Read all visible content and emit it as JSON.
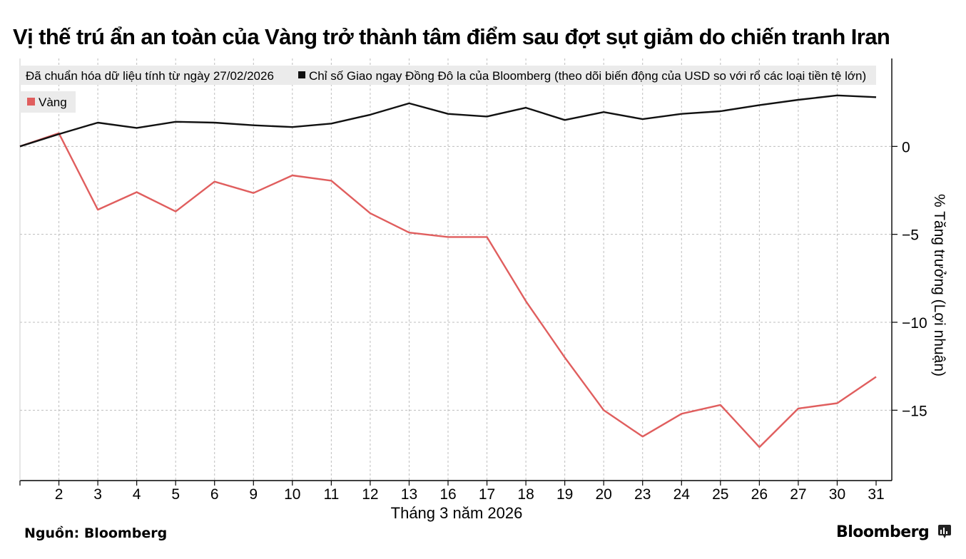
{
  "title": "Vị thế trú ẩn an toàn của Vàng trở thành tâm điểm sau đợt sụt giảm do chiến tranh Iran",
  "source": "Nguồn: Bloomberg",
  "brand": "Bloomberg",
  "brand_icon": "bloomberg-terminal-icon",
  "colors": {
    "usd": "#111111",
    "gold": "#e05e5e",
    "grid": "#bdbdbd",
    "legend_bg": "#ebebeb"
  },
  "chart_data": {
    "type": "line",
    "subtitle": "Đã chuẩn hóa dữ liệu tính từ ngày 27/02/2026",
    "xlabel": "Tháng 3 năm 2026",
    "ylabel": "% Tăng trưởng (Lợi nhuận)",
    "y_axis_position": "right",
    "ylim": [
      -19,
      5
    ],
    "yticks": [
      0,
      -5,
      -10,
      -15
    ],
    "ytick_labels": [
      "0",
      "−5",
      "−10",
      "−15"
    ],
    "grid": true,
    "legend_position": "top-left",
    "x": [
      "27/02",
      "2",
      "3",
      "4",
      "5",
      "6",
      "9",
      "10",
      "11",
      "12",
      "13",
      "16",
      "17",
      "18",
      "19",
      "20",
      "23",
      "24",
      "25",
      "26",
      "27",
      "30",
      "31"
    ],
    "x_tick_labels": [
      "2",
      "3",
      "4",
      "5",
      "6",
      "9",
      "10",
      "11",
      "12",
      "13",
      "16",
      "17",
      "18",
      "19",
      "20",
      "23",
      "24",
      "25",
      "26",
      "27",
      "30",
      "31"
    ],
    "series": [
      {
        "name": "Chỉ số Giao ngay Đồng Đô la của Bloomberg (theo dõi biến động của USD so với rổ các loại tiền tệ lớn)",
        "color": "#111111",
        "values": [
          0,
          0.7,
          1.35,
          1.05,
          1.4,
          1.35,
          1.2,
          1.1,
          1.3,
          1.8,
          2.45,
          1.85,
          1.7,
          2.2,
          1.5,
          1.95,
          1.55,
          1.85,
          2.0,
          2.35,
          2.65,
          2.9,
          2.8
        ]
      },
      {
        "name": "Vàng",
        "color": "#e05e5e",
        "values": [
          0,
          0.75,
          -3.6,
          -2.6,
          -3.7,
          -2.0,
          -2.65,
          -1.65,
          -1.95,
          -3.8,
          -4.9,
          -5.15,
          -5.15,
          -8.8,
          -12.0,
          -15.0,
          -16.5,
          -15.2,
          -14.7,
          -17.1,
          -14.9,
          -14.6,
          -13.1
        ]
      }
    ]
  }
}
